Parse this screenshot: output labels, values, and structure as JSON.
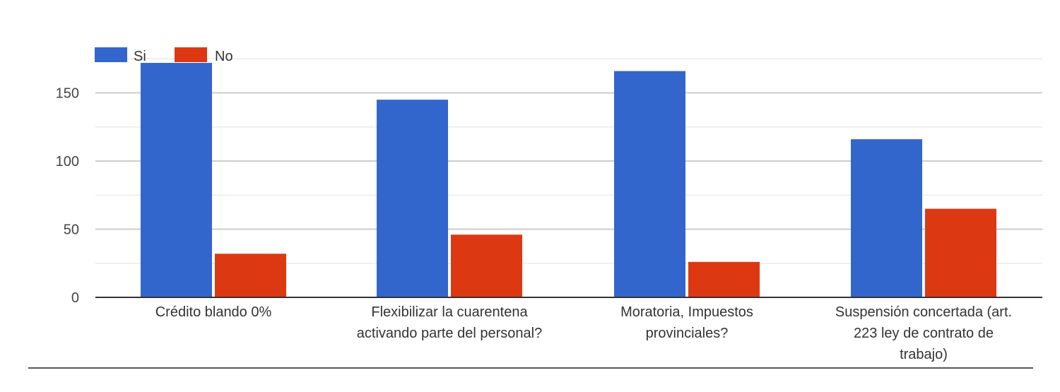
{
  "chart_data": {
    "type": "bar",
    "categories": [
      [
        "Crédito blando 0%"
      ],
      [
        "Flexibilizar la cuarentena",
        "activando parte del personal?"
      ],
      [
        "Moratoria, Impuestos",
        "provinciales?"
      ],
      [
        "Suspensión concertada (art.",
        "223 ley de contrato de",
        "trabajo)"
      ]
    ],
    "series": [
      {
        "name": "Si",
        "color": "#3366cc",
        "values": [
          172,
          145,
          166,
          116
        ]
      },
      {
        "name": "No",
        "color": "#dc3912",
        "values": [
          32,
          46,
          26,
          65
        ]
      }
    ],
    "yticks": [
      0,
      50,
      100,
      150
    ],
    "ylim": [
      0,
      180
    ],
    "grid": true,
    "legend": "top-left"
  }
}
